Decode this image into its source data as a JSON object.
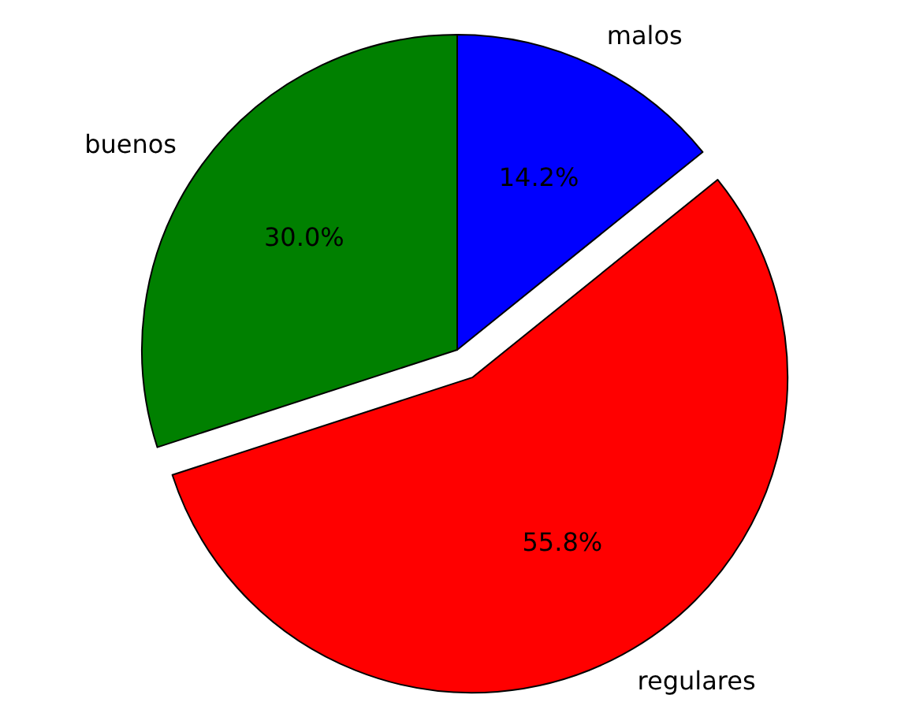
{
  "chart_data": {
    "type": "pie",
    "categories": [
      "buenos",
      "regulares",
      "malos"
    ],
    "values": [
      30.0,
      55.8,
      14.2
    ],
    "colors": [
      "#008000",
      "#ff0000",
      "#0000ff"
    ],
    "value_labels": [
      "30.0%",
      "55.8%",
      "14.2%"
    ]
  }
}
